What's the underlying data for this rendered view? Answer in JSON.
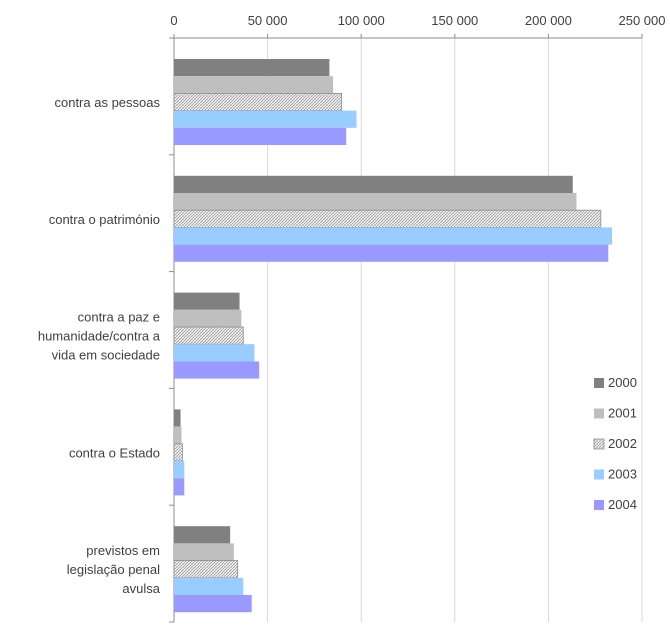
{
  "chart_data": {
    "type": "bar",
    "orientation": "horizontal",
    "categories": [
      [
        "contra as pessoas"
      ],
      [
        "contra o património"
      ],
      [
        "contra a paz e",
        "humanidade/contra a",
        "vida em sociedade"
      ],
      [
        "contra o Estado"
      ],
      [
        "previstos em",
        "legislação penal",
        "avulsa"
      ]
    ],
    "series": [
      {
        "name": "2000",
        "color": "#808080",
        "pattern": "solid",
        "values": [
          83000,
          213000,
          35000,
          3500,
          30000
        ]
      },
      {
        "name": "2001",
        "color": "#bfbfbf",
        "pattern": "solid",
        "values": [
          85000,
          215000,
          36000,
          4000,
          32000
        ]
      },
      {
        "name": "2002",
        "color": "#d9d9d9",
        "pattern": "hatch",
        "values": [
          89500,
          228000,
          37000,
          4500,
          34000
        ]
      },
      {
        "name": "2003",
        "color": "#99ccff",
        "pattern": "solid",
        "values": [
          97500,
          234000,
          43000,
          5500,
          37000
        ]
      },
      {
        "name": "2004",
        "color": "#9999ff",
        "pattern": "solid",
        "values": [
          92000,
          232000,
          45500,
          5500,
          41500
        ]
      }
    ],
    "xlim": [
      0,
      250000
    ],
    "xticks": [
      0,
      50000,
      100000,
      150000,
      200000,
      250000
    ],
    "xtick_labels": [
      "0",
      "50 000",
      "100 000",
      "150 000",
      "200 000",
      "250 000"
    ],
    "axis_position": "top",
    "grid": true,
    "legend_position": "right"
  }
}
